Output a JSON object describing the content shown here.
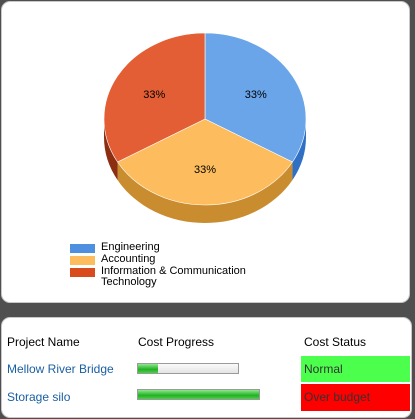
{
  "chart_data": {
    "type": "pie",
    "slices": [
      {
        "label": "Engineering",
        "value": 33.3,
        "display": "33%",
        "color": "#6aa5e9"
      },
      {
        "label": "Accounting",
        "value": 33.3,
        "display": "33%",
        "color": "#fdbd5e"
      },
      {
        "label": "Information & Communication Technology",
        "value": 33.3,
        "display": "33%",
        "color": "#e35e34"
      }
    ],
    "legend_placement": "bottom-left"
  },
  "legend": {
    "items": [
      {
        "label": "Engineering",
        "color": "#4f8fe0"
      },
      {
        "label": "Accounting",
        "color": "#fdbd5e"
      },
      {
        "label": "Information & Communication Technology",
        "color": "#d94a1c"
      }
    ]
  },
  "table": {
    "headers": {
      "project": "Project Name",
      "progress": "Cost Progress",
      "status": "Cost Status"
    },
    "rows": [
      {
        "name": "Mellow River Bridge",
        "progress": 0.2,
        "status": "Normal",
        "status_color": "#4cff4c"
      },
      {
        "name": "Storage silo",
        "progress": 1.0,
        "status": "Over budget",
        "status_color": "#ff0000"
      }
    ]
  }
}
